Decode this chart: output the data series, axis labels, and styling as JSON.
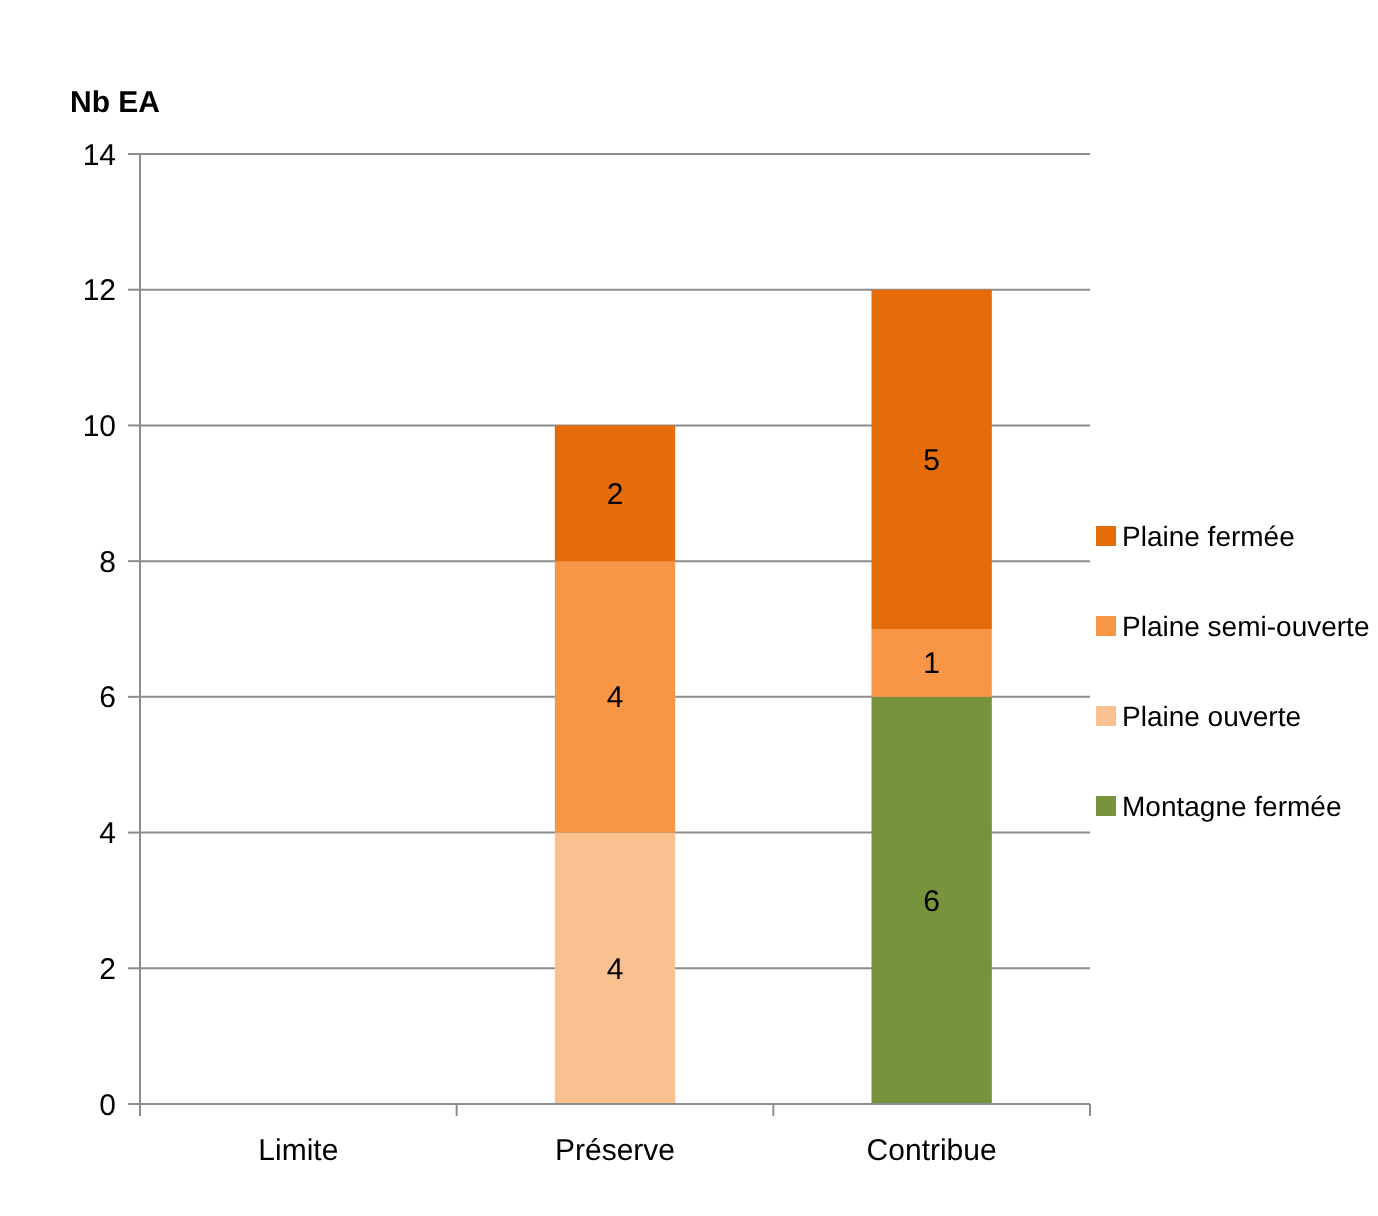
{
  "chart_data": {
    "type": "bar",
    "stacked": true,
    "ylabel": "Nb EA",
    "categories": [
      "Limite",
      "Préserve",
      "Contribue"
    ],
    "series": [
      {
        "name": "Montagne fermée",
        "color": "#77933c",
        "values": [
          null,
          null,
          6
        ]
      },
      {
        "name": "Plaine ouverte",
        "color": "#fac090",
        "values": [
          null,
          4,
          null
        ]
      },
      {
        "name": "Plaine semi-ouverte",
        "color": "#f79646",
        "values": [
          null,
          4,
          1
        ]
      },
      {
        "name": "Plaine fermée",
        "color": "#e46c0a",
        "values": [
          null,
          2,
          5
        ]
      }
    ],
    "ylim": [
      0,
      14
    ],
    "yticks": [
      0,
      2,
      4,
      6,
      8,
      10,
      12,
      14
    ],
    "grid": "y",
    "legend": "right",
    "data_labels": true
  }
}
